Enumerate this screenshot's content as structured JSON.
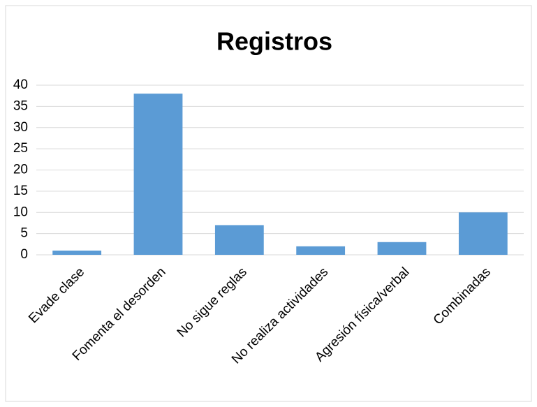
{
  "chart_data": {
    "type": "bar",
    "title": "Registros",
    "categories": [
      "Evade clase",
      "Fomenta el desorden",
      "No sigue reglas",
      "No realiza actividades",
      "Agresión física/verbal",
      "Combinadas"
    ],
    "values": [
      1,
      38,
      7,
      2,
      3,
      10
    ],
    "color": "#5b9bd5",
    "ylim": [
      0,
      40
    ],
    "yticks": [
      0,
      5,
      10,
      15,
      20,
      25,
      30,
      35,
      40
    ],
    "grid": true
  }
}
